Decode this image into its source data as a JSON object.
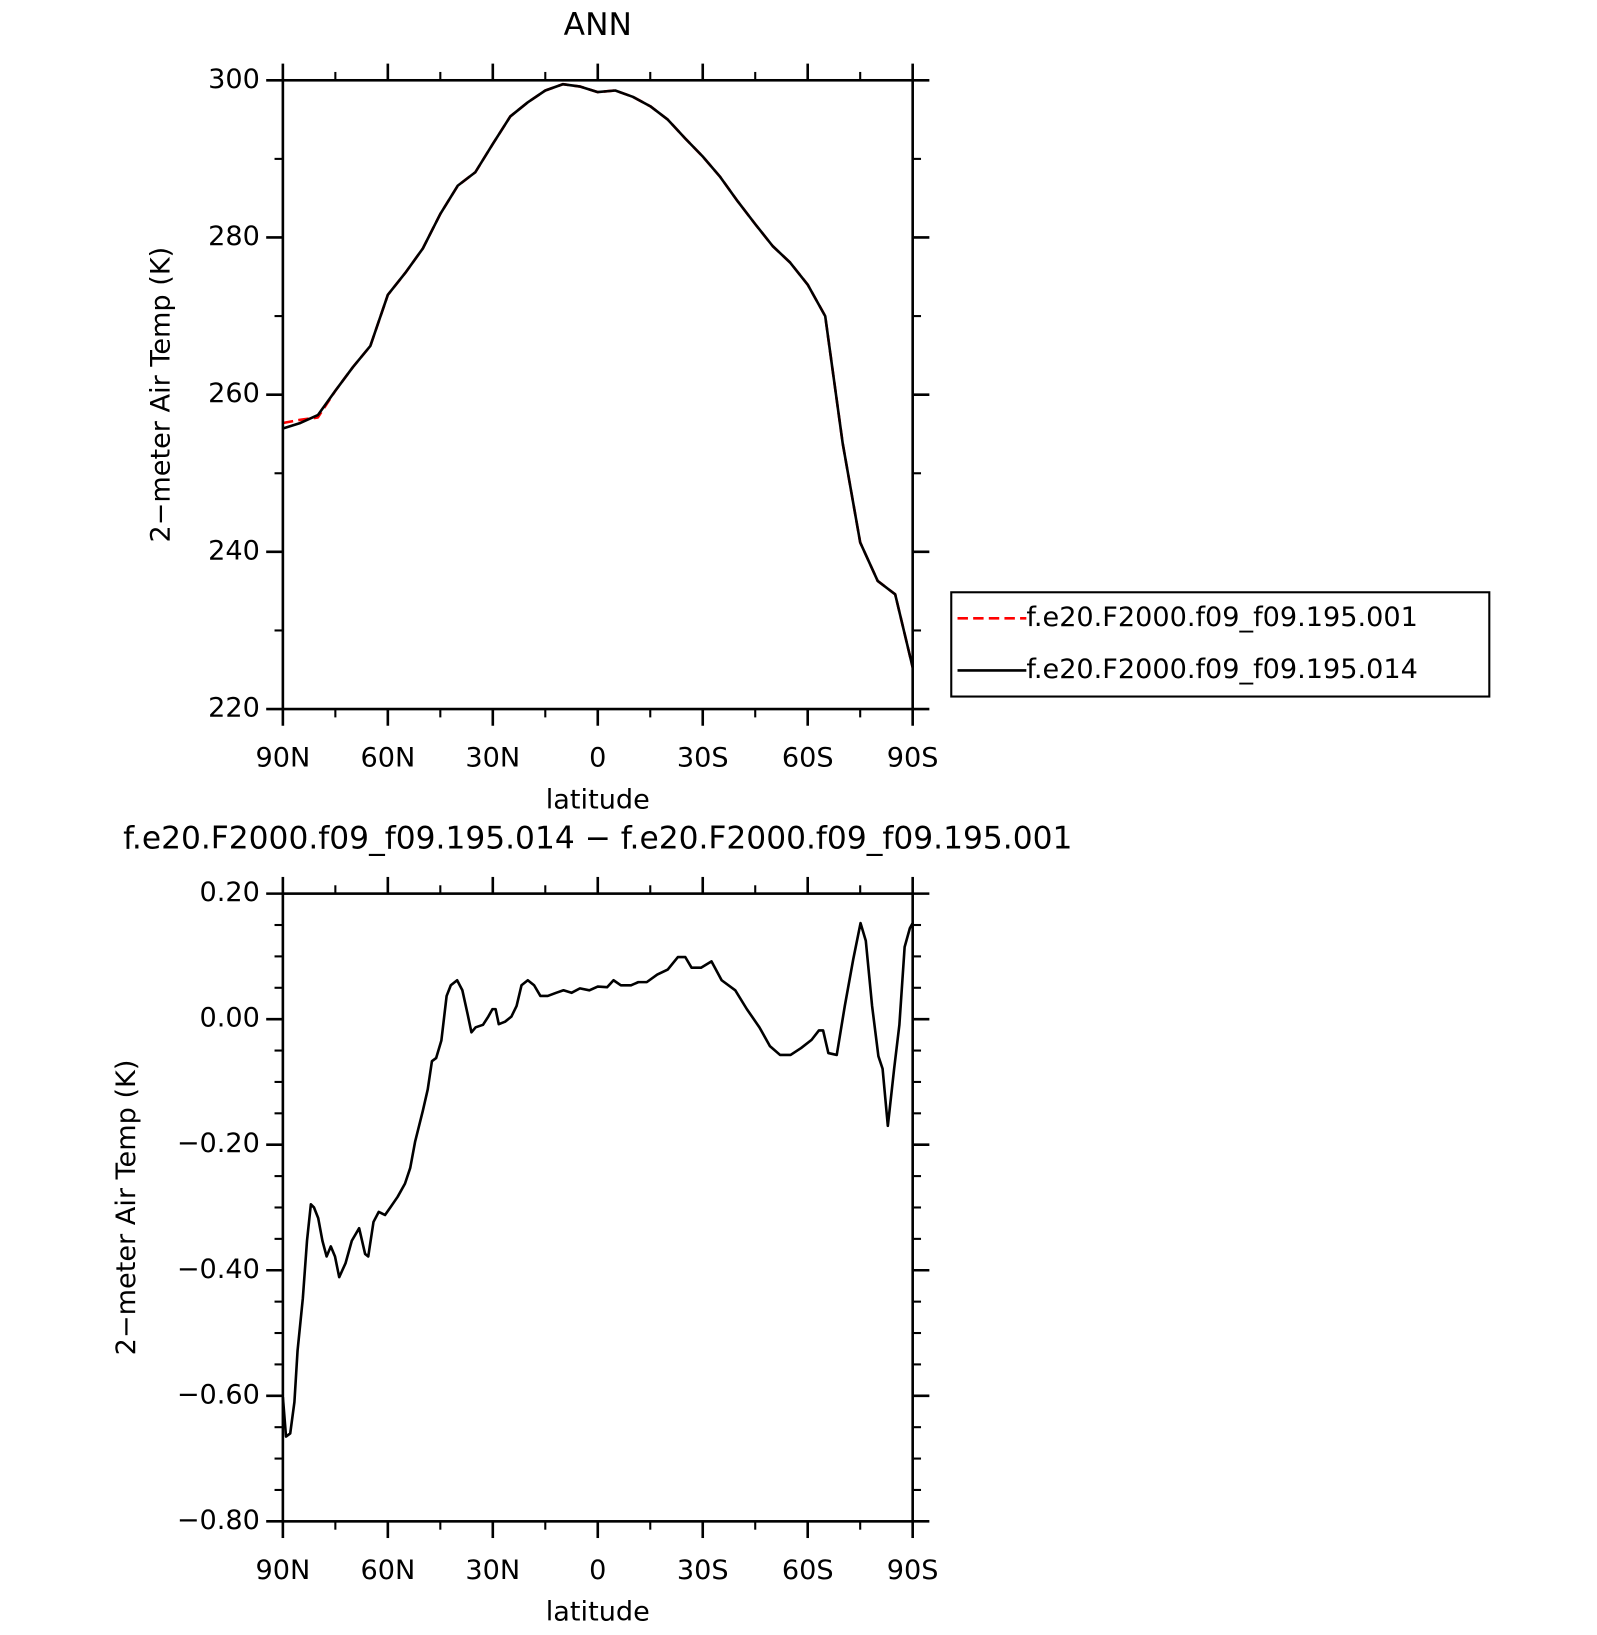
{
  "chart_data": [
    {
      "type": "line",
      "title": "ANN",
      "xlabel": "latitude",
      "ylabel": "2−meter Air Temp (K)",
      "x": [
        90,
        85,
        80,
        75,
        70,
        65,
        60,
        55,
        50,
        45,
        40,
        35,
        30,
        25,
        20,
        15,
        10,
        5,
        0,
        -5,
        -10,
        -15,
        -20,
        -25,
        -30,
        -35,
        -40,
        -45,
        -50,
        -55,
        -60,
        -65,
        -70,
        -75,
        -80,
        -85,
        -90
      ],
      "series": [
        {
          "name": "f.e20.F2000.f09_f09.195.001",
          "color": "#ff0000",
          "linestyle": "dashed",
          "values": [
            256.4,
            256.8,
            257.1,
            260.5,
            263.5,
            266.2,
            272.7,
            275.5,
            278.6,
            283.0,
            286.6,
            288.3,
            291.9,
            295.4,
            297.2,
            298.7,
            299.5,
            299.2,
            298.5,
            298.7,
            297.9,
            296.7,
            295.0,
            292.6,
            290.3,
            287.7,
            284.6,
            281.7,
            278.9,
            276.8,
            274.0,
            270.0,
            253.8,
            241.2,
            236.3,
            234.6,
            225.3
          ]
        },
        {
          "name": "f.e20.F2000.f09_f09.195.014",
          "color": "#000000",
          "linestyle": "solid",
          "values": [
            255.7,
            256.4,
            257.4,
            260.5,
            263.5,
            266.2,
            272.7,
            275.5,
            278.6,
            283.0,
            286.6,
            288.3,
            291.9,
            295.4,
            297.2,
            298.7,
            299.5,
            299.2,
            298.5,
            298.7,
            297.9,
            296.7,
            295.0,
            292.6,
            290.3,
            287.7,
            284.6,
            281.7,
            278.9,
            276.8,
            274.0,
            270.0,
            253.8,
            241.2,
            236.3,
            234.6,
            225.3
          ]
        }
      ],
      "xlim": [
        90,
        -90
      ],
      "xticks": [
        {
          "value": 90,
          "label": "90N"
        },
        {
          "value": 60,
          "label": "60N"
        },
        {
          "value": 30,
          "label": "30N"
        },
        0,
        {
          "value": -30,
          "label": "30S"
        },
        {
          "value": -60,
          "label": "60S"
        },
        {
          "value": -90,
          "label": "90S"
        }
      ],
      "xminorticks": [
        75,
        45,
        15,
        -15,
        -45,
        -75
      ],
      "ylim": [
        220,
        300
      ],
      "yticks": [
        220,
        240,
        260,
        280,
        300
      ],
      "yminorticks": [
        230,
        250,
        270,
        290
      ],
      "legend": "outside right"
    },
    {
      "type": "line",
      "title": "f.e20.F2000.f09_f09.195.014 − f.e20.F2000.f09_f09.195.001",
      "xlabel": "latitude",
      "ylabel": "2−meter Air Temp (K)",
      "x": [
        90,
        89.1,
        87.9,
        86.7,
        85.8,
        84.3,
        83.1,
        82.0,
        81.1,
        79.9,
        78.7,
        77.5,
        76.3,
        75.1,
        73.9,
        72.1,
        70.3,
        68.2,
        66.5,
        65.6,
        64.1,
        62.6,
        60.8,
        59.3,
        57.2,
        55.1,
        53.6,
        52.2,
        50.0,
        48.6,
        47.4,
        46.2,
        44.7,
        43.2,
        42.0,
        40.2,
        38.7,
        37.2,
        36.1,
        34.9,
        32.8,
        31.3,
        30.1,
        29.2,
        28.3,
        26.5,
        24.7,
        23.2,
        21.8,
        20.0,
        18.2,
        16.4,
        14.3,
        11.9,
        9.8,
        7.5,
        5.1,
        2.4,
        0,
        -2.7,
        -4.5,
        -6.6,
        -9.5,
        -11.6,
        -14.0,
        -17.0,
        -20.0,
        -22.9,
        -25.0,
        -26.8,
        -29.5,
        -32.5,
        -35.4,
        -39.3,
        -42.6,
        -46.2,
        -49.2,
        -52.1,
        -55.1,
        -58.1,
        -61.1,
        -63.2,
        -64.4,
        -65.9,
        -68.3,
        -70.6,
        -73.0,
        -75.1,
        -76.6,
        -78.4,
        -80.2,
        -81.4,
        -82.9,
        -84.7,
        -86.2,
        -87.7,
        -89.2,
        -90
      ],
      "series": [
        {
          "color": "#000000",
          "linestyle": "solid",
          "values": [
            -0.602,
            -0.665,
            -0.66,
            -0.61,
            -0.528,
            -0.445,
            -0.353,
            -0.295,
            -0.3,
            -0.317,
            -0.353,
            -0.378,
            -0.362,
            -0.378,
            -0.411,
            -0.389,
            -0.353,
            -0.333,
            -0.374,
            -0.378,
            -0.323,
            -0.307,
            -0.312,
            -0.3,
            -0.283,
            -0.262,
            -0.237,
            -0.195,
            -0.146,
            -0.112,
            -0.067,
            -0.062,
            -0.034,
            0.037,
            0.054,
            0.062,
            0.046,
            0.008,
            -0.021,
            -0.013,
            -0.009,
            0.004,
            0.016,
            0.016,
            -0.008,
            -0.004,
            0.004,
            0.021,
            0.054,
            0.062,
            0.054,
            0.037,
            0.037,
            0.042,
            0.046,
            0.042,
            0.049,
            0.046,
            0.052,
            0.051,
            0.062,
            0.054,
            0.054,
            0.059,
            0.059,
            0.071,
            0.079,
            0.099,
            0.099,
            0.082,
            0.082,
            0.092,
            0.062,
            0.046,
            0.016,
            -0.013,
            -0.043,
            -0.057,
            -0.057,
            -0.046,
            -0.033,
            -0.018,
            -0.018,
            -0.054,
            -0.057,
            0.021,
            0.095,
            0.153,
            0.125,
            0.021,
            -0.059,
            -0.079,
            -0.17,
            -0.079,
            -0.009,
            0.115,
            0.145,
            0.153
          ]
        }
      ],
      "xlim": [
        90,
        -90
      ],
      "xticks": [
        {
          "value": 90,
          "label": "90N"
        },
        {
          "value": 60,
          "label": "60N"
        },
        {
          "value": 30,
          "label": "30N"
        },
        0,
        {
          "value": -30,
          "label": "30S"
        },
        {
          "value": -60,
          "label": "60S"
        },
        {
          "value": -90,
          "label": "90S"
        }
      ],
      "xminorticks": [
        75,
        45,
        15,
        -15,
        -45,
        -75
      ],
      "ylim": [
        -0.8,
        0.2
      ],
      "yticks": [
        {
          "value": -0.8,
          "label": "−0.80"
        },
        {
          "value": -0.6,
          "label": "−0.60"
        },
        {
          "value": -0.4,
          "label": "−0.40"
        },
        {
          "value": -0.2,
          "label": "−0.20"
        },
        {
          "value": 0,
          "label": "0.00"
        },
        {
          "value": 0.2,
          "label": "0.20"
        }
      ],
      "yminorticks": [
        -0.75,
        -0.7,
        -0.65,
        -0.55,
        -0.5,
        -0.45,
        -0.35,
        -0.3,
        -0.25,
        -0.15,
        -0.1,
        -0.05,
        0.05,
        0.1,
        0.15
      ]
    }
  ]
}
